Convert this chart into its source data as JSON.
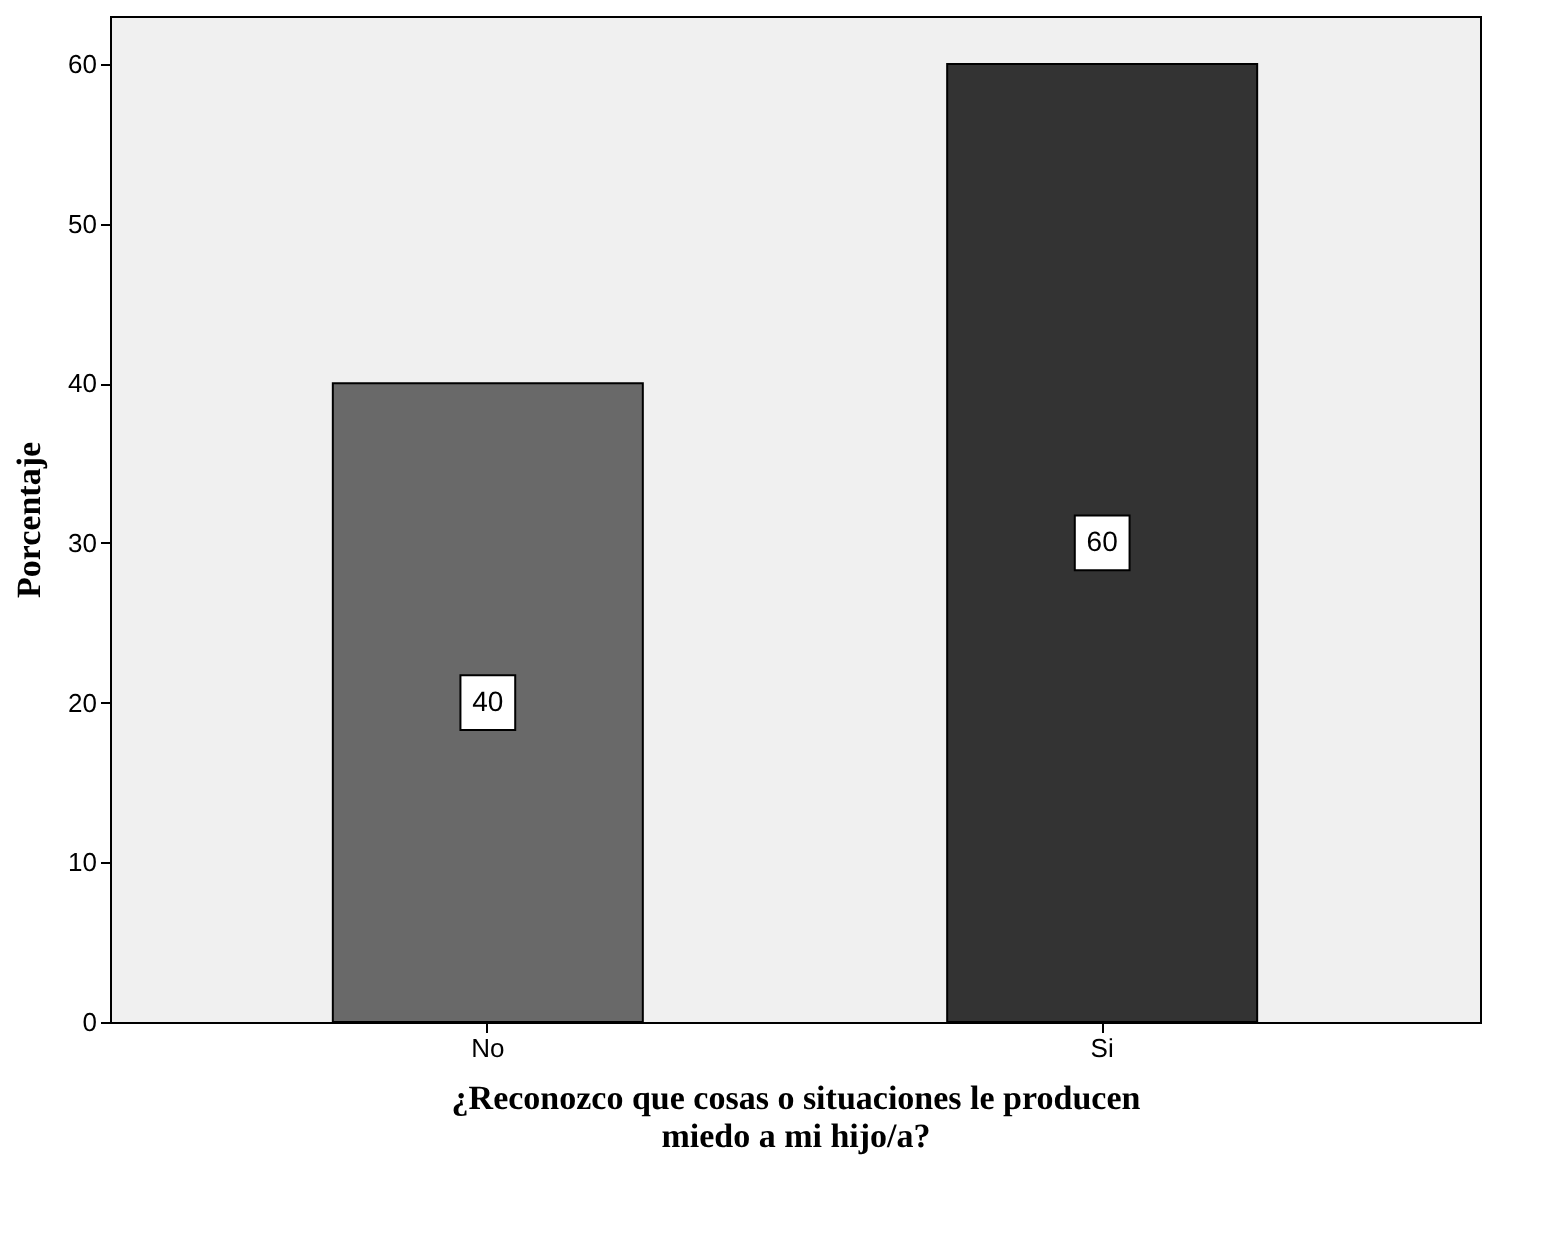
{
  "chart_data": {
    "type": "bar",
    "categories": [
      "No",
      "Si"
    ],
    "values": [
      40,
      60
    ],
    "colors": [
      "#696969",
      "#333333"
    ],
    "xlabel": "¿Reconozco que cosas o situaciones le producen\nmiedo a mi hijo/a?",
    "ylabel": "Porcentaje",
    "ylim": [
      0,
      63
    ],
    "yticks": [
      0,
      10,
      20,
      30,
      40,
      50,
      60
    ],
    "data_labels": true,
    "grid": false
  }
}
